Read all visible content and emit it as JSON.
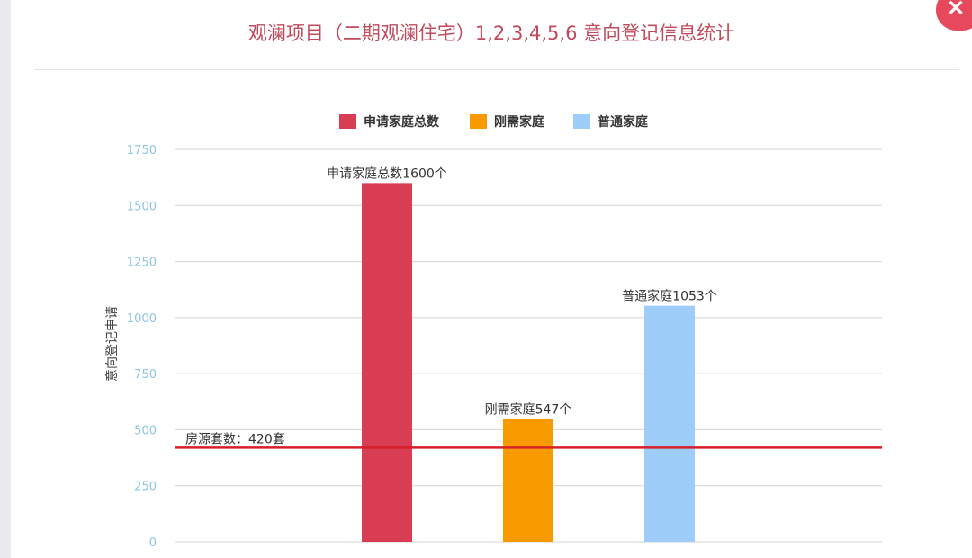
{
  "colors": {
    "title": "#c04b5c",
    "axis_tick": "#8ec5e0",
    "grid": "#d4d4d4",
    "close_bg": "#e8485c",
    "reference": "#d6202a"
  },
  "close_icon": "close-icon",
  "chart_data": {
    "type": "bar",
    "title": "观澜项目（二期观澜住宅）1,2,3,4,5,6 意向登记信息统计",
    "xlabel": "",
    "ylabel": "意向登记申请",
    "ylim": [
      0,
      1750
    ],
    "yticks": [
      "0",
      "250",
      "500",
      "750",
      "1000",
      "1250",
      "1500",
      "1750"
    ],
    "ytick_values": [
      0,
      250,
      500,
      750,
      1000,
      1250,
      1500,
      1750
    ],
    "grid": true,
    "legend": "top",
    "series": [
      {
        "name": "申请家庭总数",
        "value": 1600,
        "color": "#d83d53",
        "label": "申请家庭总数1600个"
      },
      {
        "name": "刚需家庭",
        "value": 547,
        "color": "#f99a00",
        "label": "刚需家庭547个"
      },
      {
        "name": "普通家庭",
        "value": 1053,
        "color": "#9fcdf9",
        "label": "普通家庭1053个"
      }
    ],
    "reference_line": {
      "value": 420,
      "label": "房源套数：420套"
    }
  }
}
